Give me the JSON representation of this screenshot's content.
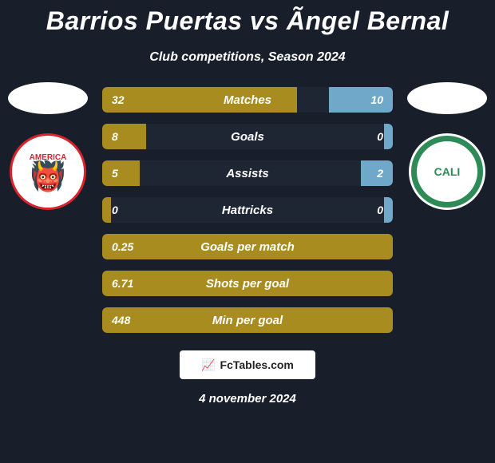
{
  "title": "Barrios Puertas vs Ãngel Bernal",
  "subtitle": "Club competitions, Season 2024",
  "date": "4 november 2024",
  "footer_label": "FcTables.com",
  "colors": {
    "background": "#181f2b",
    "row_bg": "#1e2633",
    "left_fill": "#a88c1f",
    "right_fill": "#6fa8c9",
    "text": "#ffffff"
  },
  "left_player": {
    "ellipse_color": "#ffffff",
    "club_name": "AMERICA",
    "club_primary": "#d9232d",
    "club_bg": "#ffffff"
  },
  "right_player": {
    "ellipse_color": "#ffffff",
    "club_name": "CALI",
    "club_primary": "#2e8b57",
    "club_bg": "#ffffff"
  },
  "stats": [
    {
      "label": "Matches",
      "left_val": "32",
      "right_val": "10",
      "left_pct": 67,
      "right_pct": 22
    },
    {
      "label": "Goals",
      "left_val": "8",
      "right_val": "0",
      "left_pct": 15,
      "right_pct": 3
    },
    {
      "label": "Assists",
      "left_val": "5",
      "right_val": "2",
      "left_pct": 13,
      "right_pct": 11
    },
    {
      "label": "Hattricks",
      "left_val": "0",
      "right_val": "0",
      "left_pct": 3,
      "right_pct": 3
    },
    {
      "label": "Goals per match",
      "left_val": "0.25",
      "right_val": "",
      "left_pct": 100,
      "right_pct": 0
    },
    {
      "label": "Shots per goal",
      "left_val": "6.71",
      "right_val": "",
      "left_pct": 100,
      "right_pct": 0
    },
    {
      "label": "Min per goal",
      "left_val": "448",
      "right_val": "",
      "left_pct": 100,
      "right_pct": 0
    }
  ]
}
